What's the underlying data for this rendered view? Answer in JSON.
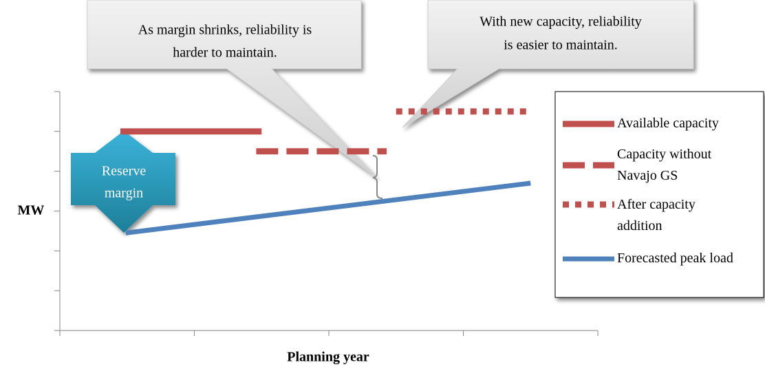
{
  "chart_data": {
    "type": "line",
    "x_label": "MW",
    "y_label": "MW",
    "xlabel": "Planning year",
    "xlim": [
      0,
      4
    ],
    "xticks": [
      0,
      1,
      2,
      3,
      4
    ],
    "ylim": [
      0,
      6
    ],
    "yticks": [
      0,
      1,
      2,
      3,
      4,
      5,
      6
    ],
    "series": [
      {
        "name": "Available capacity",
        "color": "#c0504d",
        "style": "solid",
        "x": [
          0.45,
          1.5
        ],
        "values": [
          5,
          5
        ]
      },
      {
        "name": "Capacity without Navajo GS",
        "color": "#c0504d",
        "style": "dashed",
        "x": [
          1.46,
          2.43
        ],
        "values": [
          4.5,
          4.5
        ]
      },
      {
        "name": "After capacity addition",
        "color": "#c0504d",
        "style": "dotted",
        "x": [
          2.5,
          3.5
        ],
        "values": [
          5.5,
          5.5
        ]
      },
      {
        "name": "Forecasted peak load",
        "color": "#4f81bd",
        "style": "solid",
        "x": [
          0.49,
          3.5
        ],
        "values": [
          2.45,
          3.7
        ]
      }
    ],
    "annotations": [
      {
        "lines": [
          "As margin shrinks, reliability is",
          "harder to maintain."
        ]
      },
      {
        "lines": [
          "With new capacity, reliability",
          "is easier to maintain."
        ]
      },
      {
        "lines": [
          "Reserve",
          "margin"
        ]
      }
    ],
    "legend": "right"
  }
}
